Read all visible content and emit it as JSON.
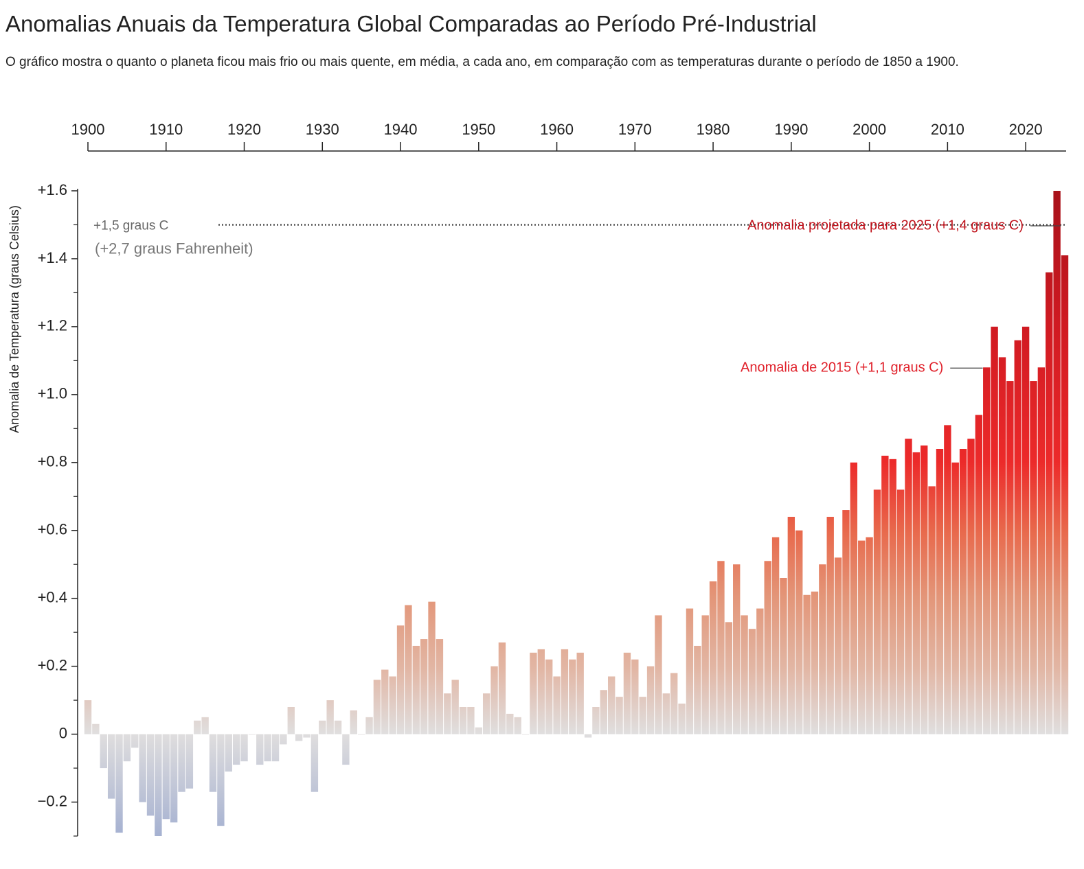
{
  "chart_data": {
    "type": "bar",
    "title": "Anomalias Anuais da Temperatura Global Comparadas ao Período Pré-Industrial",
    "subtitle": "O gráfico mostra o quanto o planeta ficou mais frio ou mais quente, em média, a cada ano, em comparação com as temperaturas durante o período de 1850 a 1900.",
    "y_label": "Anomalia de Temperatura (graus Celsius)",
    "x": [
      1900,
      1901,
      1902,
      1903,
      1904,
      1905,
      1906,
      1907,
      1908,
      1909,
      1910,
      1911,
      1912,
      1913,
      1914,
      1915,
      1916,
      1917,
      1918,
      1919,
      1920,
      1921,
      1922,
      1923,
      1924,
      1925,
      1926,
      1927,
      1928,
      1929,
      1930,
      1931,
      1932,
      1933,
      1934,
      1935,
      1936,
      1937,
      1938,
      1939,
      1940,
      1941,
      1942,
      1943,
      1944,
      1945,
      1946,
      1947,
      1948,
      1949,
      1950,
      1951,
      1952,
      1953,
      1954,
      1955,
      1956,
      1957,
      1958,
      1959,
      1960,
      1961,
      1962,
      1963,
      1964,
      1965,
      1966,
      1967,
      1968,
      1969,
      1970,
      1971,
      1972,
      1973,
      1974,
      1975,
      1976,
      1977,
      1978,
      1979,
      1980,
      1981,
      1982,
      1983,
      1984,
      1985,
      1986,
      1987,
      1988,
      1989,
      1990,
      1991,
      1992,
      1993,
      1994,
      1995,
      1996,
      1997,
      1998,
      1999,
      2000,
      2001,
      2002,
      2003,
      2004,
      2005,
      2006,
      2007,
      2008,
      2009,
      2010,
      2011,
      2012,
      2013,
      2014,
      2015,
      2016,
      2017,
      2018,
      2019,
      2020,
      2021,
      2022,
      2023,
      2024,
      2025
    ],
    "values": [
      0.1,
      0.03,
      -0.1,
      -0.19,
      -0.29,
      -0.08,
      -0.04,
      -0.2,
      -0.24,
      -0.3,
      -0.25,
      -0.26,
      -0.17,
      -0.16,
      0.04,
      0.05,
      -0.17,
      -0.27,
      -0.11,
      -0.09,
      -0.08,
      0.0,
      -0.09,
      -0.08,
      -0.08,
      -0.03,
      0.08,
      -0.02,
      -0.01,
      -0.17,
      0.04,
      0.1,
      0.04,
      -0.09,
      0.07,
      0.0,
      0.05,
      0.16,
      0.19,
      0.17,
      0.32,
      0.38,
      0.26,
      0.28,
      0.39,
      0.28,
      0.12,
      0.16,
      0.08,
      0.08,
      0.02,
      0.12,
      0.2,
      0.27,
      0.06,
      0.05,
      0.0,
      0.24,
      0.25,
      0.22,
      0.17,
      0.25,
      0.22,
      0.24,
      -0.01,
      0.08,
      0.13,
      0.17,
      0.11,
      0.24,
      0.22,
      0.11,
      0.2,
      0.35,
      0.12,
      0.18,
      0.09,
      0.37,
      0.26,
      0.35,
      0.45,
      0.51,
      0.33,
      0.5,
      0.35,
      0.31,
      0.37,
      0.51,
      0.58,
      0.46,
      0.64,
      0.6,
      0.41,
      0.42,
      0.5,
      0.64,
      0.52,
      0.66,
      0.8,
      0.57,
      0.58,
      0.72,
      0.82,
      0.81,
      0.72,
      0.87,
      0.83,
      0.85,
      0.73,
      0.84,
      0.91,
      0.8,
      0.84,
      0.87,
      0.94,
      1.08,
      1.2,
      1.11,
      1.04,
      1.16,
      1.2,
      1.04,
      1.08,
      1.36,
      1.6,
      1.41
    ],
    "xlim": [
      1900,
      2025
    ],
    "xticks": [
      1900,
      1910,
      1920,
      1930,
      1940,
      1950,
      1960,
      1970,
      1980,
      1990,
      2000,
      2010,
      2020
    ],
    "ylim": [
      -0.3,
      1.6
    ],
    "yticks": [
      {
        "value": -0.2,
        "label": "−0.2"
      },
      0,
      {
        "value": 0.2,
        "label": "+0.2"
      },
      {
        "value": 0.4,
        "label": "+0.4"
      },
      {
        "value": 0.6,
        "label": "+0.6"
      },
      {
        "value": 0.8,
        "label": "+0.8"
      },
      {
        "value": 1.0,
        "label": "+1.0"
      },
      {
        "value": 1.2,
        "label": "+1.2"
      },
      {
        "value": 1.4,
        "label": "+1.4"
      },
      {
        "value": 1.6,
        "label": "+1.6"
      }
    ],
    "yticks_minor": [
      -0.3,
      -0.1,
      0.1,
      0.3,
      0.5,
      0.7,
      0.9,
      1.1,
      1.3,
      1.5
    ],
    "threshold": {
      "value": 1.5,
      "label": "+1,5 graus C",
      "sublabel": "(+2,7 graus Fahrenheit)"
    },
    "annotations": [
      {
        "text": "Anomalia projetada para 2025 (+1,4 graus C)",
        "x": 2025,
        "color": "#c0121b"
      },
      {
        "text": "Anomalia de 2015 (+1,1 graus C)",
        "x": 2015,
        "color": "#e0202a"
      }
    ]
  }
}
